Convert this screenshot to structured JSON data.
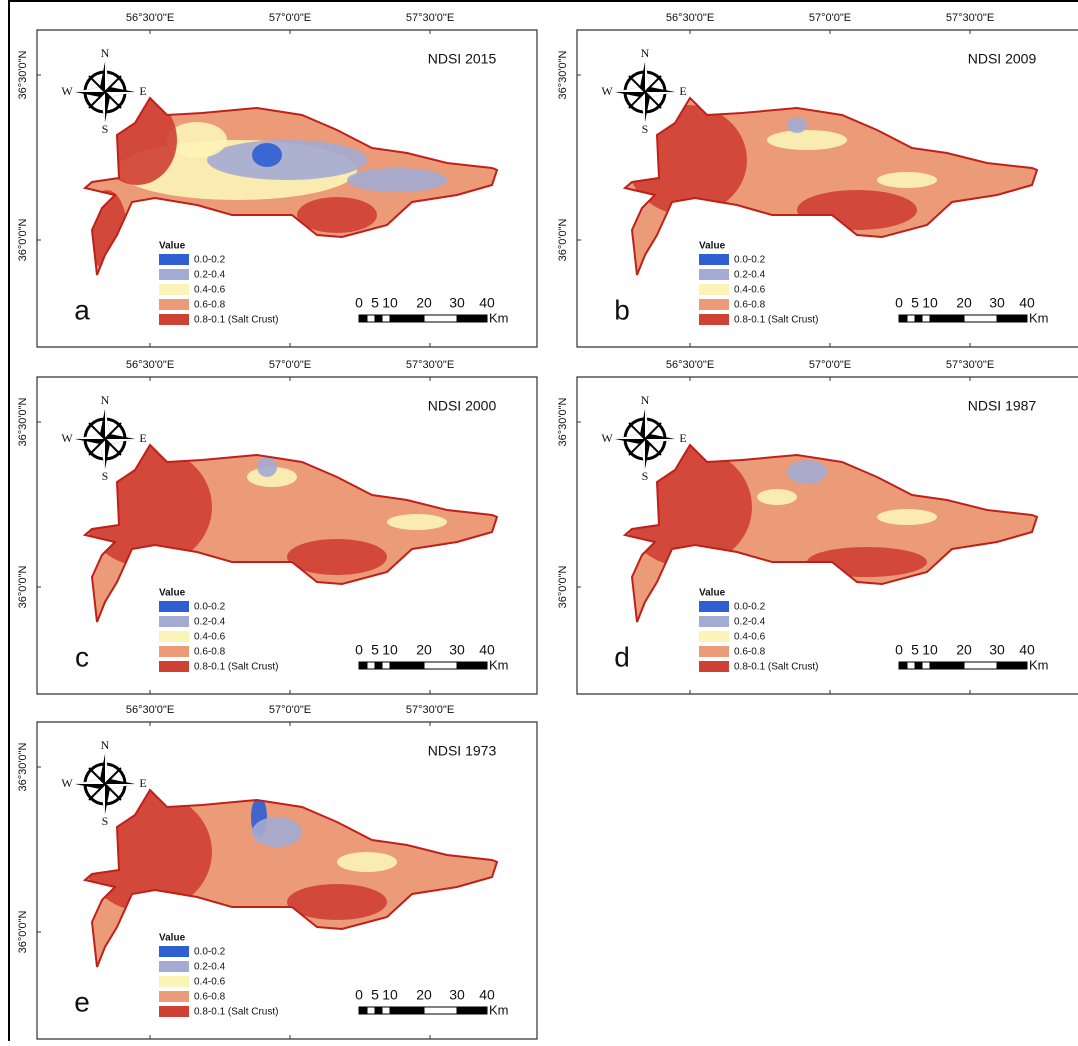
{
  "panels": [
    {
      "title": "NDSI 2015",
      "letter": "a",
      "legend": {
        "title": "Value",
        "items": [
          {
            "label": "0.0-0.2",
            "color": "#2f5fd3"
          },
          {
            "label": "0.2-0.4",
            "color": "#a3abd3"
          },
          {
            "label": "0.4-0.6",
            "color": "#fcf4b6"
          },
          {
            "label": "0.6-0.8",
            "color": "#ec9b78"
          },
          {
            "label": "0.8-0.1 (Salt Crust)",
            "color": "#cf4035"
          }
        ]
      },
      "scale": {
        "labels": [
          "0",
          "5",
          "10",
          "20",
          "30",
          "40"
        ],
        "unit": "Km"
      },
      "compass": [
        "N",
        "E",
        "S",
        "W"
      ],
      "lon_labels": [
        "56°30'0\"E",
        "57°0'0\"E",
        "57°30'0\"E"
      ],
      "lat_labels": [
        "36°30'0\"N",
        "36°0'0\"N"
      ]
    },
    {
      "title": "NDSI 2009",
      "letter": "b",
      "legend": {
        "title": "Value",
        "items": [
          {
            "label": "0.0-0.2",
            "color": "#2f5fd3"
          },
          {
            "label": "0.2-0.4",
            "color": "#a3abd3"
          },
          {
            "label": "0.4-0.6",
            "color": "#fcf4b6"
          },
          {
            "label": "0.6-0.8",
            "color": "#ec9b78"
          },
          {
            "label": "0.8-0.1 (Salt Crust)",
            "color": "#cf4035"
          }
        ]
      },
      "scale": {
        "labels": [
          "0",
          "5",
          "10",
          "20",
          "30",
          "40"
        ],
        "unit": "Km"
      },
      "compass": [
        "N",
        "E",
        "S",
        "W"
      ],
      "lon_labels": [
        "56°30'0\"E",
        "57°0'0\"E",
        "57°30'0\"E"
      ],
      "lat_labels": [
        "36°30'0\"N",
        "36°0'0\"N"
      ]
    },
    {
      "title": "NDSI 2000",
      "letter": "c",
      "legend": {
        "title": "Value",
        "items": [
          {
            "label": "0.0-0.2",
            "color": "#2f5fd3"
          },
          {
            "label": "0.2-0.4",
            "color": "#a3abd3"
          },
          {
            "label": "0.4-0.6",
            "color": "#fcf4b6"
          },
          {
            "label": "0.6-0.8",
            "color": "#ec9b78"
          },
          {
            "label": "0.8-0.1 (Salt Crust)",
            "color": "#cf4035"
          }
        ]
      },
      "scale": {
        "labels": [
          "0",
          "5",
          "10",
          "20",
          "30",
          "40"
        ],
        "unit": "Km"
      },
      "compass": [
        "N",
        "E",
        "S",
        "W"
      ],
      "lon_labels": [
        "56°30'0\"E",
        "57°0'0\"E",
        "57°30'0\"E"
      ],
      "lat_labels": [
        "36°30'0\"N",
        "36°0'0\"N"
      ]
    },
    {
      "title": "NDSI 1987",
      "letter": "d",
      "legend": {
        "title": "Value",
        "items": [
          {
            "label": "0.0-0.2",
            "color": "#2f5fd3"
          },
          {
            "label": "0.2-0.4",
            "color": "#a3abd3"
          },
          {
            "label": "0.4-0.6",
            "color": "#fcf4b6"
          },
          {
            "label": "0.6-0.8",
            "color": "#ec9b78"
          },
          {
            "label": "0.8-0.1 (Salt Crust)",
            "color": "#cf4035"
          }
        ]
      },
      "scale": {
        "labels": [
          "0",
          "5",
          "10",
          "20",
          "30",
          "40"
        ],
        "unit": "Km"
      },
      "compass": [
        "N",
        "E",
        "S",
        "W"
      ],
      "lon_labels": [
        "56°30'0\"E",
        "57°0'0\"E",
        "57°30'0\"E"
      ],
      "lat_labels": [
        "36°30'0\"N",
        "36°0'0\"N"
      ]
    },
    {
      "title": "NDSI 1973",
      "letter": "e",
      "legend": {
        "title": "Value",
        "items": [
          {
            "label": "0.0-0.2",
            "color": "#2f5fd3"
          },
          {
            "label": "0.2-0.4",
            "color": "#a3abd3"
          },
          {
            "label": "0.4-0.6",
            "color": "#fcf4b6"
          },
          {
            "label": "0.6-0.8",
            "color": "#ec9b78"
          },
          {
            "label": "0.8-0.1 (Salt Crust)",
            "color": "#cf4035"
          }
        ]
      },
      "scale": {
        "labels": [
          "0",
          "5",
          "10",
          "20",
          "30",
          "40"
        ],
        "unit": "Km"
      },
      "compass": [
        "N",
        "E",
        "S",
        "W"
      ],
      "lon_labels": [
        "56°30'0\"E",
        "57°0'0\"E",
        "57°30'0\"E"
      ],
      "lat_labels": [
        "36°30'0\"N",
        "36°0'0\"N"
      ]
    }
  ]
}
